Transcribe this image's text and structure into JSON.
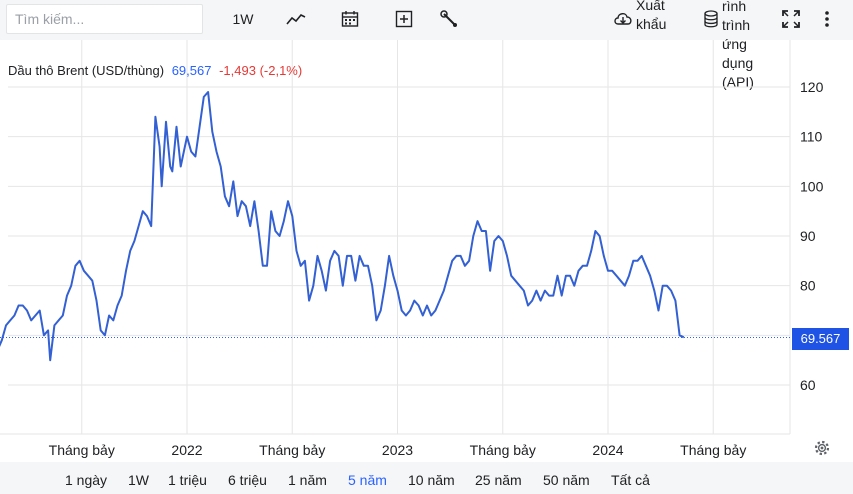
{
  "toolbar": {
    "search_placeholder": "Tìm kiếm...",
    "interval_label": "1W",
    "export_label": "Xuất khẩu",
    "api_label": "rình trình ứng dụng (API)",
    "icons": [
      "line-chart-icon",
      "calendar-icon",
      "plus-square-icon",
      "wrench-icon",
      "cloud-download-icon",
      "database-icon",
      "fullscreen-icon",
      "more-vert-icon"
    ]
  },
  "header": {
    "symbol": "Dầu thô Brent (USD/thùng)",
    "price": "69,567",
    "change": "-1,493 (-2,1%)"
  },
  "last_price_badge": "69.567",
  "colors": {
    "line": "#3360d3",
    "accent": "#2962ff",
    "negative": "#e53935",
    "badge": "#1e53e5"
  },
  "bottom": {
    "ranges": [
      "1 ngày",
      "1W",
      "1 triệu",
      "6 triệu",
      "1 năm",
      "5 năm",
      "10 năm",
      "25 năm",
      "50 năm",
      "Tất cả"
    ],
    "active": "5 năm"
  },
  "chart_data": {
    "type": "line",
    "title": "Dầu thô Brent (USD/thùng)",
    "xlabel": "",
    "ylabel": "",
    "ylim": [
      50,
      125
    ],
    "yticks": [
      60,
      70,
      80,
      90,
      100,
      110,
      120
    ],
    "x_tick_labels": [
      {
        "label": "Tháng bảy",
        "t": 0.5
      },
      {
        "label": "2022",
        "t": 1.0
      },
      {
        "label": "Tháng bảy",
        "t": 1.5
      },
      {
        "label": "2023",
        "t": 2.0
      },
      {
        "label": "Tháng bảy",
        "t": 2.5
      },
      {
        "label": "2024",
        "t": 3.0
      },
      {
        "label": "Tháng bảy",
        "t": 3.5
      }
    ],
    "xlim": [
      -0.22,
      3.58
    ],
    "grid": true,
    "series": [
      {
        "name": "",
        "points": [
          [
            -0.22,
            55
          ],
          [
            -0.2,
            60
          ],
          [
            -0.18,
            62
          ],
          [
            -0.16,
            63
          ],
          [
            -0.14,
            64
          ],
          [
            -0.12,
            69
          ],
          [
            -0.1,
            69
          ],
          [
            -0.08,
            65
          ],
          [
            -0.06,
            65
          ],
          [
            -0.04,
            65
          ],
          [
            -0.02,
            63
          ],
          [
            0.0,
            66
          ],
          [
            0.02,
            65
          ],
          [
            0.04,
            66
          ],
          [
            0.06,
            68
          ],
          [
            0.08,
            69
          ],
          [
            0.1,
            67
          ],
          [
            0.12,
            69
          ],
          [
            0.14,
            72
          ],
          [
            0.16,
            73
          ],
          [
            0.18,
            74
          ],
          [
            0.2,
            76
          ],
          [
            0.22,
            76
          ],
          [
            0.24,
            75
          ],
          [
            0.26,
            73
          ],
          [
            0.28,
            74
          ],
          [
            0.3,
            75
          ],
          [
            0.32,
            70
          ],
          [
            0.34,
            71
          ],
          [
            0.35,
            65
          ],
          [
            0.37,
            72
          ],
          [
            0.39,
            73
          ],
          [
            0.41,
            74
          ],
          [
            0.43,
            78
          ],
          [
            0.45,
            80
          ],
          [
            0.47,
            84
          ],
          [
            0.49,
            85
          ],
          [
            0.51,
            83
          ],
          [
            0.53,
            82
          ],
          [
            0.55,
            81
          ],
          [
            0.57,
            77
          ],
          [
            0.59,
            71
          ],
          [
            0.61,
            70
          ],
          [
            0.63,
            74
          ],
          [
            0.65,
            73
          ],
          [
            0.67,
            76
          ],
          [
            0.69,
            78
          ],
          [
            0.71,
            83
          ],
          [
            0.73,
            87
          ],
          [
            0.75,
            89
          ],
          [
            0.77,
            92
          ],
          [
            0.79,
            95
          ],
          [
            0.81,
            94
          ],
          [
            0.83,
            92
          ],
          [
            0.85,
            114
          ],
          [
            0.87,
            108
          ],
          [
            0.88,
            100
          ],
          [
            0.9,
            113
          ],
          [
            0.92,
            104
          ],
          [
            0.93,
            103
          ],
          [
            0.95,
            112
          ],
          [
            0.97,
            104
          ],
          [
            0.98,
            106
          ],
          [
            1.0,
            110
          ],
          [
            1.02,
            107
          ],
          [
            1.04,
            106
          ],
          [
            1.06,
            112
          ],
          [
            1.08,
            118
          ],
          [
            1.1,
            119
          ],
          [
            1.12,
            111
          ],
          [
            1.14,
            107
          ],
          [
            1.16,
            104
          ],
          [
            1.18,
            98
          ],
          [
            1.2,
            96
          ],
          [
            1.22,
            101
          ],
          [
            1.24,
            94
          ],
          [
            1.26,
            97
          ],
          [
            1.28,
            96
          ],
          [
            1.3,
            92
          ],
          [
            1.32,
            97
          ],
          [
            1.34,
            91
          ],
          [
            1.36,
            84
          ],
          [
            1.38,
            84
          ],
          [
            1.4,
            95
          ],
          [
            1.42,
            91
          ],
          [
            1.44,
            90
          ],
          [
            1.46,
            93
          ],
          [
            1.48,
            97
          ],
          [
            1.5,
            94
          ],
          [
            1.52,
            87
          ],
          [
            1.54,
            84
          ],
          [
            1.56,
            85
          ],
          [
            1.58,
            77
          ],
          [
            1.6,
            80
          ],
          [
            1.62,
            86
          ],
          [
            1.64,
            83
          ],
          [
            1.66,
            79
          ],
          [
            1.68,
            85
          ],
          [
            1.7,
            87
          ],
          [
            1.72,
            86
          ],
          [
            1.74,
            80
          ],
          [
            1.76,
            86
          ],
          [
            1.78,
            86
          ],
          [
            1.8,
            81
          ],
          [
            1.82,
            86
          ],
          [
            1.84,
            84
          ],
          [
            1.86,
            84
          ],
          [
            1.88,
            80
          ],
          [
            1.9,
            73
          ],
          [
            1.92,
            75
          ],
          [
            1.94,
            80
          ],
          [
            1.96,
            86
          ],
          [
            1.98,
            82
          ],
          [
            2.0,
            79
          ],
          [
            2.02,
            75
          ],
          [
            2.04,
            74
          ],
          [
            2.06,
            75
          ],
          [
            2.08,
            77
          ],
          [
            2.1,
            76
          ],
          [
            2.12,
            74
          ],
          [
            2.14,
            76
          ],
          [
            2.16,
            74
          ],
          [
            2.18,
            75
          ],
          [
            2.2,
            77
          ],
          [
            2.22,
            79
          ],
          [
            2.24,
            82
          ],
          [
            2.26,
            85
          ],
          [
            2.28,
            86
          ],
          [
            2.3,
            86
          ],
          [
            2.32,
            84
          ],
          [
            2.34,
            85
          ],
          [
            2.36,
            90
          ],
          [
            2.38,
            93
          ],
          [
            2.4,
            91
          ],
          [
            2.42,
            91
          ],
          [
            2.44,
            83
          ],
          [
            2.46,
            89
          ],
          [
            2.48,
            90
          ],
          [
            2.5,
            89
          ],
          [
            2.52,
            86
          ],
          [
            2.54,
            82
          ],
          [
            2.56,
            81
          ],
          [
            2.58,
            80
          ],
          [
            2.6,
            79
          ],
          [
            2.62,
            76
          ],
          [
            2.64,
            77
          ],
          [
            2.66,
            79
          ],
          [
            2.68,
            77
          ],
          [
            2.7,
            79
          ],
          [
            2.72,
            78
          ],
          [
            2.74,
            78
          ],
          [
            2.76,
            82
          ],
          [
            2.78,
            78
          ],
          [
            2.8,
            82
          ],
          [
            2.82,
            82
          ],
          [
            2.84,
            80
          ],
          [
            2.86,
            83
          ],
          [
            2.88,
            84
          ],
          [
            2.9,
            84
          ],
          [
            2.92,
            87
          ],
          [
            2.94,
            91
          ],
          [
            2.96,
            90
          ],
          [
            2.98,
            86
          ],
          [
            3.0,
            83
          ],
          [
            3.02,
            83
          ],
          [
            3.04,
            82
          ],
          [
            3.06,
            81
          ],
          [
            3.08,
            80
          ],
          [
            3.1,
            82
          ],
          [
            3.12,
            85
          ],
          [
            3.14,
            85
          ],
          [
            3.16,
            86
          ],
          [
            3.18,
            84
          ],
          [
            3.2,
            82
          ],
          [
            3.22,
            79
          ],
          [
            3.24,
            75
          ],
          [
            3.26,
            80
          ],
          [
            3.28,
            80
          ],
          [
            3.3,
            79
          ],
          [
            3.32,
            77
          ],
          [
            3.34,
            70
          ],
          [
            3.36,
            69.6
          ]
        ]
      }
    ],
    "last_value": 69.567
  }
}
